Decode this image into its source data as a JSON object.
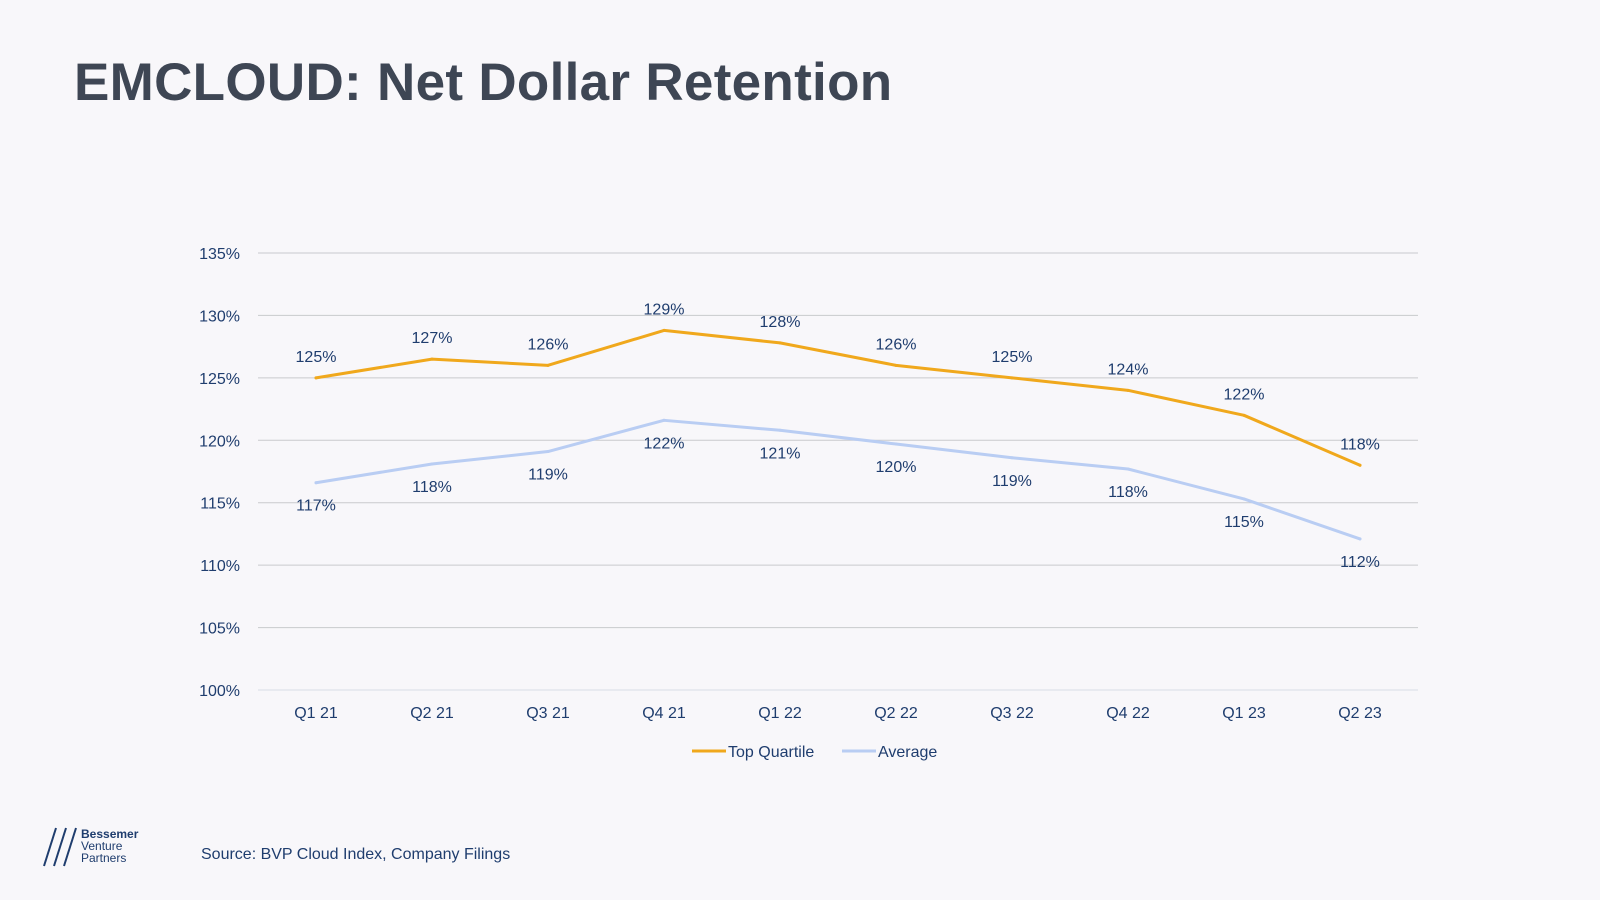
{
  "page": {
    "title": "EMCLOUD: Net Dollar Retention"
  },
  "footer": {
    "source": "Source: BVP Cloud Index, Company Filings",
    "logo_lines": [
      "Bessemer",
      "Venture",
      "Partners"
    ]
  },
  "chart_data": {
    "type": "line",
    "title": "",
    "xlabel": "",
    "ylabel": "",
    "categories": [
      "Q1 21",
      "Q2 21",
      "Q3 21",
      "Q4 21",
      "Q1 22",
      "Q2 22",
      "Q3 22",
      "Q4 22",
      "Q1 23",
      "Q2 23"
    ],
    "y_ticks": [
      "100%",
      "105%",
      "110%",
      "115%",
      "120%",
      "125%",
      "130%",
      "135%"
    ],
    "ylim": [
      100,
      135
    ],
    "grid": true,
    "legend": "bottom-center",
    "series": [
      {
        "name": "Top Quartile",
        "color": "#f0a81c",
        "values": [
          125,
          126.5,
          126,
          128.8,
          127.8,
          126,
          125,
          124,
          122,
          118
        ],
        "labels": [
          "125%",
          "127%",
          "126%",
          "129%",
          "128%",
          "126%",
          "125%",
          "124%",
          "122%",
          "118%"
        ],
        "label_position": "above"
      },
      {
        "name": "Average",
        "color": "#b9cdf3",
        "values": [
          116.6,
          118.1,
          119.1,
          121.6,
          120.8,
          119.7,
          118.6,
          117.7,
          115.3,
          112.1
        ],
        "labels": [
          "117%",
          "118%",
          "119%",
          "122%",
          "121%",
          "120%",
          "119%",
          "118%",
          "115%",
          "112%"
        ],
        "label_position": "below"
      }
    ]
  }
}
